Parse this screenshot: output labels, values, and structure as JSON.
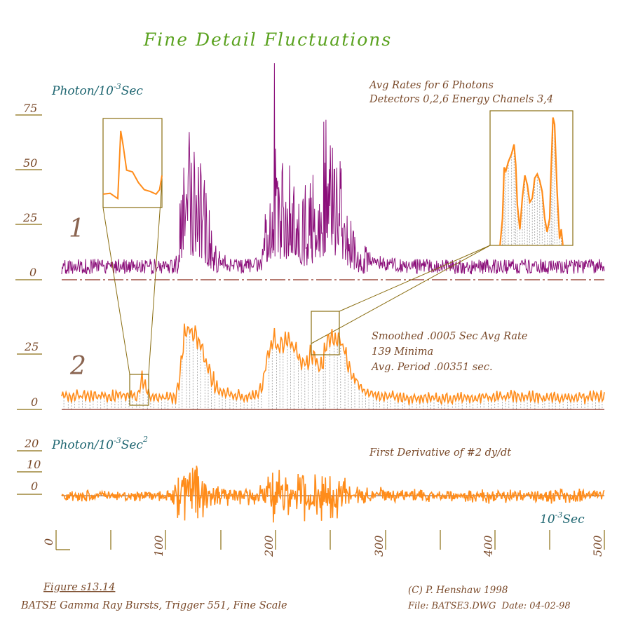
{
  "colors": {
    "title": "#5aa21f",
    "unit_teal": "#1d6570",
    "annotation_brown": "#7a4a2a",
    "axis_olive": "#8a6e12",
    "baseline_red": "#8a2a1a",
    "trace_purple": "#8b0f7a",
    "trace_orange": "#ff8c1a",
    "minima_gray": "#9a9a9a"
  },
  "title": "Fine Detail Fluctuations",
  "panel1": {
    "unit_main": "Photon/10",
    "unit_sup": "-3",
    "unit_tail": "Sec",
    "yticks": [
      "75",
      "50",
      "25",
      "0"
    ],
    "trace_label": "1",
    "annotation_line1": "Avg Rates for 6 Photons",
    "annotation_line2": "Detectors 0,2,6 Energy Chanels 3,4"
  },
  "panel2": {
    "yticks": [
      "25",
      "0"
    ],
    "trace_label": "2",
    "annotation_line1": "Smoothed .0005 Sec Avg Rate",
    "annotation_line2": "139 Minima",
    "annotation_line3": "Avg. Period .00351 sec."
  },
  "panel3": {
    "unit_main": "Photon/10",
    "unit_sup": "-3",
    "unit_tail": "Sec",
    "unit_sup2": "2",
    "yticks": [
      "20",
      "10",
      "0"
    ],
    "annotation": "First Derivative of #2 dy/dt",
    "xunit_main": "10",
    "xunit_sup": "-3",
    "xunit_tail": "Sec"
  },
  "xaxis": {
    "ticks": [
      "0",
      "100",
      "200",
      "300",
      "400",
      "500"
    ],
    "range": [
      0,
      500
    ]
  },
  "footer": {
    "figure_label": "Figure s13.14",
    "caption": "BATSE Gamma Ray Bursts, Trigger 551, Fine Scale",
    "copyright": "(C) P. Henshaw 1998",
    "file_info": "File: BATSE3.DWG  Date: 04-02-98"
  },
  "chart_data": [
    {
      "type": "line",
      "title": "Fine Detail Fluctuations",
      "ylabel": "Photon/10-3 Sec",
      "xlabel": "10-3 Sec",
      "xlim": [
        0,
        500
      ],
      "ylim": [
        0,
        75
      ],
      "x_ticks": [
        0,
        100,
        200,
        300,
        400,
        500
      ],
      "y_ticks": [
        0,
        25,
        50,
        75
      ],
      "series": [
        {
          "name": "1",
          "anchors": [
            [
              0,
              6
            ],
            [
              50,
              6
            ],
            [
              90,
              6
            ],
            [
              105,
              6
            ],
            [
              107,
              12
            ],
            [
              110,
              35
            ],
            [
              113,
              58
            ],
            [
              117,
              48
            ],
            [
              122,
              40
            ],
            [
              128,
              42
            ],
            [
              133,
              28
            ],
            [
              138,
              18
            ],
            [
              145,
              10
            ],
            [
              155,
              7
            ],
            [
              165,
              6
            ],
            [
              175,
              7
            ],
            [
              182,
              7
            ],
            [
              185,
              14
            ],
            [
              190,
              28
            ],
            [
              195,
              44
            ],
            [
              200,
              38
            ],
            [
              205,
              38
            ],
            [
              210,
              38
            ],
            [
              218,
              30
            ],
            [
              225,
              24
            ],
            [
              230,
              32
            ],
            [
              235,
              22
            ],
            [
              238,
              35
            ],
            [
              243,
              38
            ],
            [
              248,
              42
            ],
            [
              252,
              44
            ],
            [
              257,
              38
            ],
            [
              262,
              26
            ],
            [
              268,
              18
            ],
            [
              275,
              12
            ],
            [
              285,
              9
            ],
            [
              295,
              7
            ],
            [
              320,
              6
            ],
            [
              360,
              6
            ],
            [
              420,
              6
            ],
            [
              460,
              6
            ],
            [
              500,
              6
            ]
          ]
        }
      ]
    },
    {
      "type": "line",
      "xlim": [
        0,
        500
      ],
      "ylim": [
        0,
        37.5
      ],
      "y_ticks": [
        0,
        25
      ],
      "series": [
        {
          "name": "2",
          "minima_count": 139,
          "anchors": [
            [
              0,
              6
            ],
            [
              50,
              6
            ],
            [
              70,
              6
            ],
            [
              72,
              10
            ],
            [
              75,
              15
            ],
            [
              78,
              9
            ],
            [
              82,
              6
            ],
            [
              105,
              5
            ],
            [
              110,
              20
            ],
            [
              113,
              34
            ],
            [
              116,
              37
            ],
            [
              120,
              35
            ],
            [
              124,
              34
            ],
            [
              128,
              30
            ],
            [
              133,
              22
            ],
            [
              138,
              14
            ],
            [
              145,
              9
            ],
            [
              155,
              7
            ],
            [
              170,
              6
            ],
            [
              180,
              7
            ],
            [
              184,
              10
            ],
            [
              188,
              20
            ],
            [
              192,
              28
            ],
            [
              196,
              31
            ],
            [
              200,
              28
            ],
            [
              204,
              29
            ],
            [
              208,
              30
            ],
            [
              214,
              27
            ],
            [
              220,
              23
            ],
            [
              226,
              20
            ],
            [
              230,
              26
            ],
            [
              234,
              22
            ],
            [
              238,
              18
            ],
            [
              242,
              25
            ],
            [
              246,
              31
            ],
            [
              250,
              34
            ],
            [
              254,
              32
            ],
            [
              258,
              30
            ],
            [
              262,
              24
            ],
            [
              266,
              18
            ],
            [
              272,
              12
            ],
            [
              280,
              8
            ],
            [
              290,
              6
            ],
            [
              320,
              5
            ],
            [
              360,
              5
            ],
            [
              420,
              6
            ],
            [
              460,
              5
            ],
            [
              500,
              6
            ]
          ]
        }
      ]
    },
    {
      "type": "line",
      "title": "First Derivative of #2 dy/dt",
      "ylabel": "Photon/10-3 Sec2",
      "xlim": [
        0,
        500
      ],
      "y_ticks": [
        0,
        10,
        20
      ],
      "series": [
        {
          "name": "dy/dt",
          "envelope": [
            [
              0,
              2
            ],
            [
              100,
              2
            ],
            [
              110,
              10
            ],
            [
              122,
              12
            ],
            [
              140,
              6
            ],
            [
              160,
              3
            ],
            [
              180,
              4
            ],
            [
              195,
              10
            ],
            [
              210,
              9
            ],
            [
              230,
              8
            ],
            [
              250,
              9
            ],
            [
              265,
              6
            ],
            [
              290,
              3
            ],
            [
              350,
              2
            ],
            [
              440,
              3
            ],
            [
              500,
              2
            ]
          ]
        }
      ]
    }
  ]
}
